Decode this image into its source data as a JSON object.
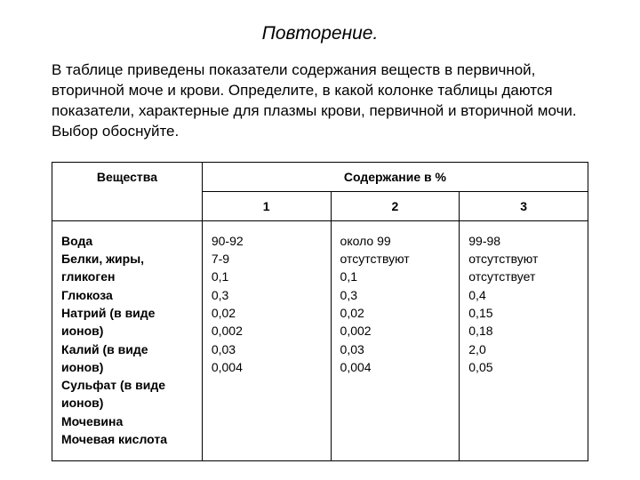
{
  "title": "Повторение.",
  "intro": "В таблице приведены показатели содержания веществ в первичной, вторичной моче и крови. Определите, в какой колонке таблицы даются показатели, характерные для плазмы крови, первичной и вторичной мочи. Выбор обоснуйте.",
  "table": {
    "header_substances": "Вещества",
    "header_content": "Содержание в %",
    "col_labels": {
      "c1": "1",
      "c2": "2",
      "c3": "3"
    },
    "substances": "Вода\nБелки, жиры, гликоген\nГлюкоза\nНатрий (в виде ионов)\nКалий (в виде ионов)\nСульфат (в виде ионов)\nМочевина\nМочевая кислота",
    "col1": "90-92\n7-9\n0,1\n0,3\n0,02\n0,002\n0,03\n0,004",
    "col2": "около 99\nотсутствуют\n0,1\n0,3\n0,02\n0,002\n0,03\n0,004",
    "col3": "99-98\nотсутствуют\nотсутствует\n0,4\n0,15\n0,18\n2,0\n0,05"
  }
}
